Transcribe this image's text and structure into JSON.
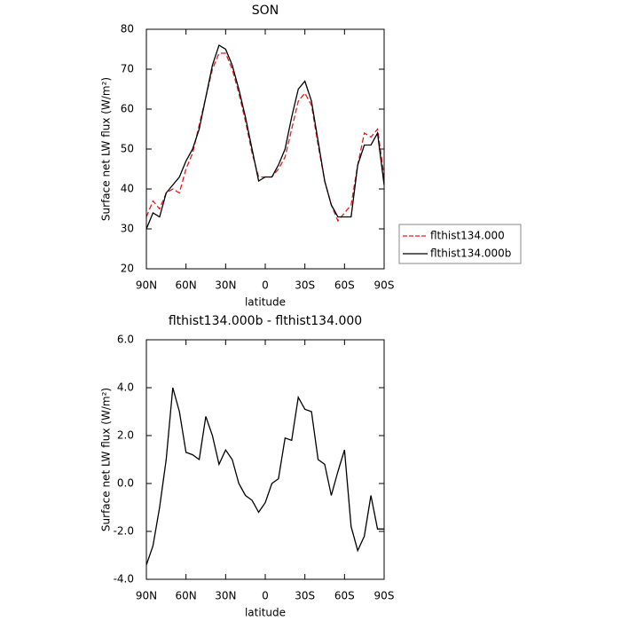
{
  "chart_data": [
    {
      "type": "line",
      "title": "SON",
      "xlabel": "latitude",
      "ylabel": "Surface net LW flux (W/m²)",
      "x": [
        90,
        85,
        80,
        75,
        70,
        65,
        60,
        55,
        50,
        45,
        40,
        35,
        30,
        25,
        20,
        15,
        10,
        5,
        0,
        -5,
        -10,
        -15,
        -20,
        -25,
        -30,
        -35,
        -40,
        -45,
        -50,
        -55,
        -60,
        -65,
        -70,
        -75,
        -80,
        -85,
        -90
      ],
      "xlim": [
        90,
        -90
      ],
      "xticks": [
        {
          "value": 90,
          "label": "90N"
        },
        {
          "value": 60,
          "label": "60N"
        },
        {
          "value": 30,
          "label": "30N"
        },
        0,
        {
          "value": -30,
          "label": "30S"
        },
        {
          "value": -60,
          "label": "60S"
        },
        {
          "value": -90,
          "label": "90S"
        }
      ],
      "ylim": [
        20,
        80
      ],
      "yticks": [
        20,
        30,
        40,
        50,
        60,
        70,
        80
      ],
      "legend": "right",
      "series": [
        {
          "name": "flthist134.000",
          "color": "#e8191c",
          "dash": true,
          "values": [
            33,
            37,
            35,
            39,
            40,
            39,
            45,
            49,
            56,
            63,
            70,
            74,
            74,
            70,
            64,
            57,
            49,
            43,
            43,
            43,
            45,
            48,
            55,
            62,
            64,
            61,
            51,
            42,
            36,
            32,
            34,
            36,
            46,
            54,
            53,
            55,
            43
          ]
        },
        {
          "name": "flthist134.000b",
          "color": "#000000",
          "dash": false,
          "values": [
            30,
            34,
            33,
            39,
            41,
            43,
            47,
            50,
            55,
            63,
            71,
            76,
            75,
            71,
            65,
            58,
            50,
            42,
            43,
            43,
            46,
            50,
            58,
            65,
            67,
            62,
            52,
            42,
            36,
            33,
            33,
            33,
            46,
            51,
            51,
            54,
            41
          ]
        }
      ]
    },
    {
      "type": "line",
      "title": "flthist134.000b - flthist134.000",
      "xlabel": "latitude",
      "ylabel": "Surface net LW flux (W/m²)",
      "x": [
        90,
        85,
        80,
        75,
        70,
        65,
        60,
        55,
        50,
        45,
        40,
        35,
        30,
        25,
        20,
        15,
        10,
        5,
        0,
        -5,
        -10,
        -15,
        -20,
        -25,
        -30,
        -35,
        -40,
        -45,
        -50,
        -55,
        -60,
        -65,
        -70,
        -75,
        -80,
        -85,
        -90
      ],
      "xlim": [
        90,
        -90
      ],
      "xticks": [
        {
          "value": 90,
          "label": "90N"
        },
        {
          "value": 60,
          "label": "60N"
        },
        {
          "value": 30,
          "label": "30N"
        },
        0,
        {
          "value": -30,
          "label": "30S"
        },
        {
          "value": -60,
          "label": "60S"
        },
        {
          "value": -90,
          "label": "90S"
        }
      ],
      "ylim": [
        -4,
        6
      ],
      "yticks": [
        {
          "value": -4,
          "label": "-4.0"
        },
        {
          "value": -2,
          "label": "-2.0"
        },
        {
          "value": 0,
          "label": "0.0"
        },
        {
          "value": 2,
          "label": "2.0"
        },
        {
          "value": 4,
          "label": "4.0"
        },
        {
          "value": 6,
          "label": "6.0"
        }
      ],
      "series": [
        {
          "name": null,
          "color": "#000000",
          "dash": false,
          "values": [
            -3.4,
            -2.6,
            -1.0,
            1.0,
            4.0,
            3.0,
            1.3,
            1.2,
            1.0,
            2.8,
            2.0,
            0.8,
            1.4,
            1.0,
            0.0,
            -0.5,
            -0.7,
            -1.2,
            -0.8,
            0.0,
            0.2,
            1.9,
            1.8,
            3.6,
            3.1,
            3.0,
            1.0,
            0.8,
            -0.5,
            0.5,
            1.4,
            -1.8,
            -2.8,
            -2.2,
            -0.5,
            -1.9,
            -1.9
          ]
        }
      ]
    }
  ]
}
